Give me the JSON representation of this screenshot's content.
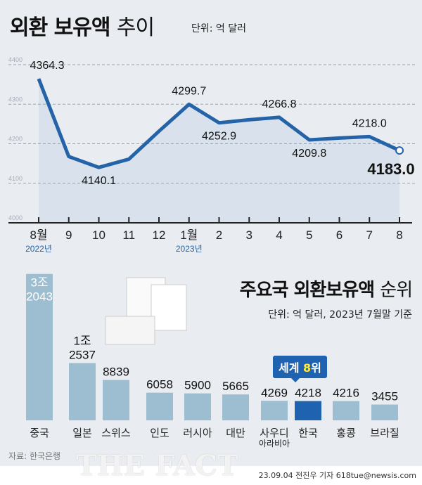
{
  "chart_data": [
    {
      "type": "line",
      "title": "외환 보유액 추이",
      "title_bold": "외환 보유액",
      "title_light": "추이",
      "unit": "단위: 억 달러",
      "categories": [
        "8월",
        "9",
        "10",
        "11",
        "12",
        "1월",
        "2",
        "3",
        "4",
        "5",
        "6",
        "7",
        "8"
      ],
      "year_labels": [
        {
          "at": "8월",
          "label": "2022년"
        },
        {
          "at": "1월",
          "label": "2023년"
        }
      ],
      "values": [
        4364.3,
        4167.7,
        4140.1,
        4161.0,
        4231.6,
        4299.7,
        4252.9,
        4260.7,
        4266.8,
        4209.8,
        4214.5,
        4218.0,
        4183.0
      ],
      "data_labels": [
        "4364.3",
        null,
        "4140.1",
        null,
        null,
        "4299.7",
        "4252.9",
        null,
        "4266.8",
        "4209.8",
        null,
        "4218.0",
        "4183.0"
      ],
      "yticks": [
        4000,
        4100,
        4200,
        4300,
        4400
      ],
      "ylim": [
        4000,
        4400
      ],
      "grid": true,
      "line_color": "#2563a8",
      "fill_color": "#d9e2ec"
    },
    {
      "type": "bar",
      "title": "주요국 외환보유액 순위",
      "title_bold": "주요국 외환보유액",
      "title_light": "순위",
      "unit": "단위: 억 달러, 2023년 7월말 기준",
      "categories": [
        "중국",
        "일본",
        "스위스",
        "인도",
        "러시아",
        "대만",
        "사우디 아라비아",
        "한국",
        "홍콩",
        "브라질"
      ],
      "values": [
        32043,
        12537,
        8839,
        6058,
        5900,
        5665,
        4269,
        4218,
        4216,
        3455
      ],
      "value_labels": [
        "3조\n2043",
        "1조\n2537",
        "8839",
        "6058",
        "5900",
        "5665",
        "4269",
        "4218",
        "4216",
        "3455"
      ],
      "highlight": "한국",
      "highlight_color": "#1f63b0",
      "bar_color": "#9dbdd0",
      "badge": {
        "prefix": "세계 ",
        "rank": "8",
        "suffix": "위"
      }
    }
  ],
  "source": "자료: 한국은행",
  "credit": "23.09.04 전진우 기자 618tue@newsis.com",
  "watermark": "THE FACT"
}
